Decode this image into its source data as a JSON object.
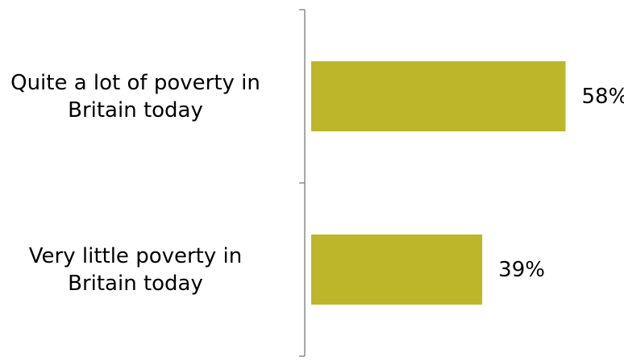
{
  "chart_data": {
    "type": "bar",
    "orientation": "horizontal",
    "categories": [
      "Quite a lot of poverty in\nBritain today",
      "Very little poverty in\nBritain today"
    ],
    "values": [
      58,
      39
    ],
    "value_labels": [
      "58%",
      "39%"
    ],
    "unit": "%",
    "xlim": [
      0,
      100
    ],
    "grid": false,
    "legend": "none",
    "title": "",
    "xlabel": "",
    "ylabel": "",
    "bar_color": "#bdb62b",
    "axis_color": "#8c8c8c"
  }
}
